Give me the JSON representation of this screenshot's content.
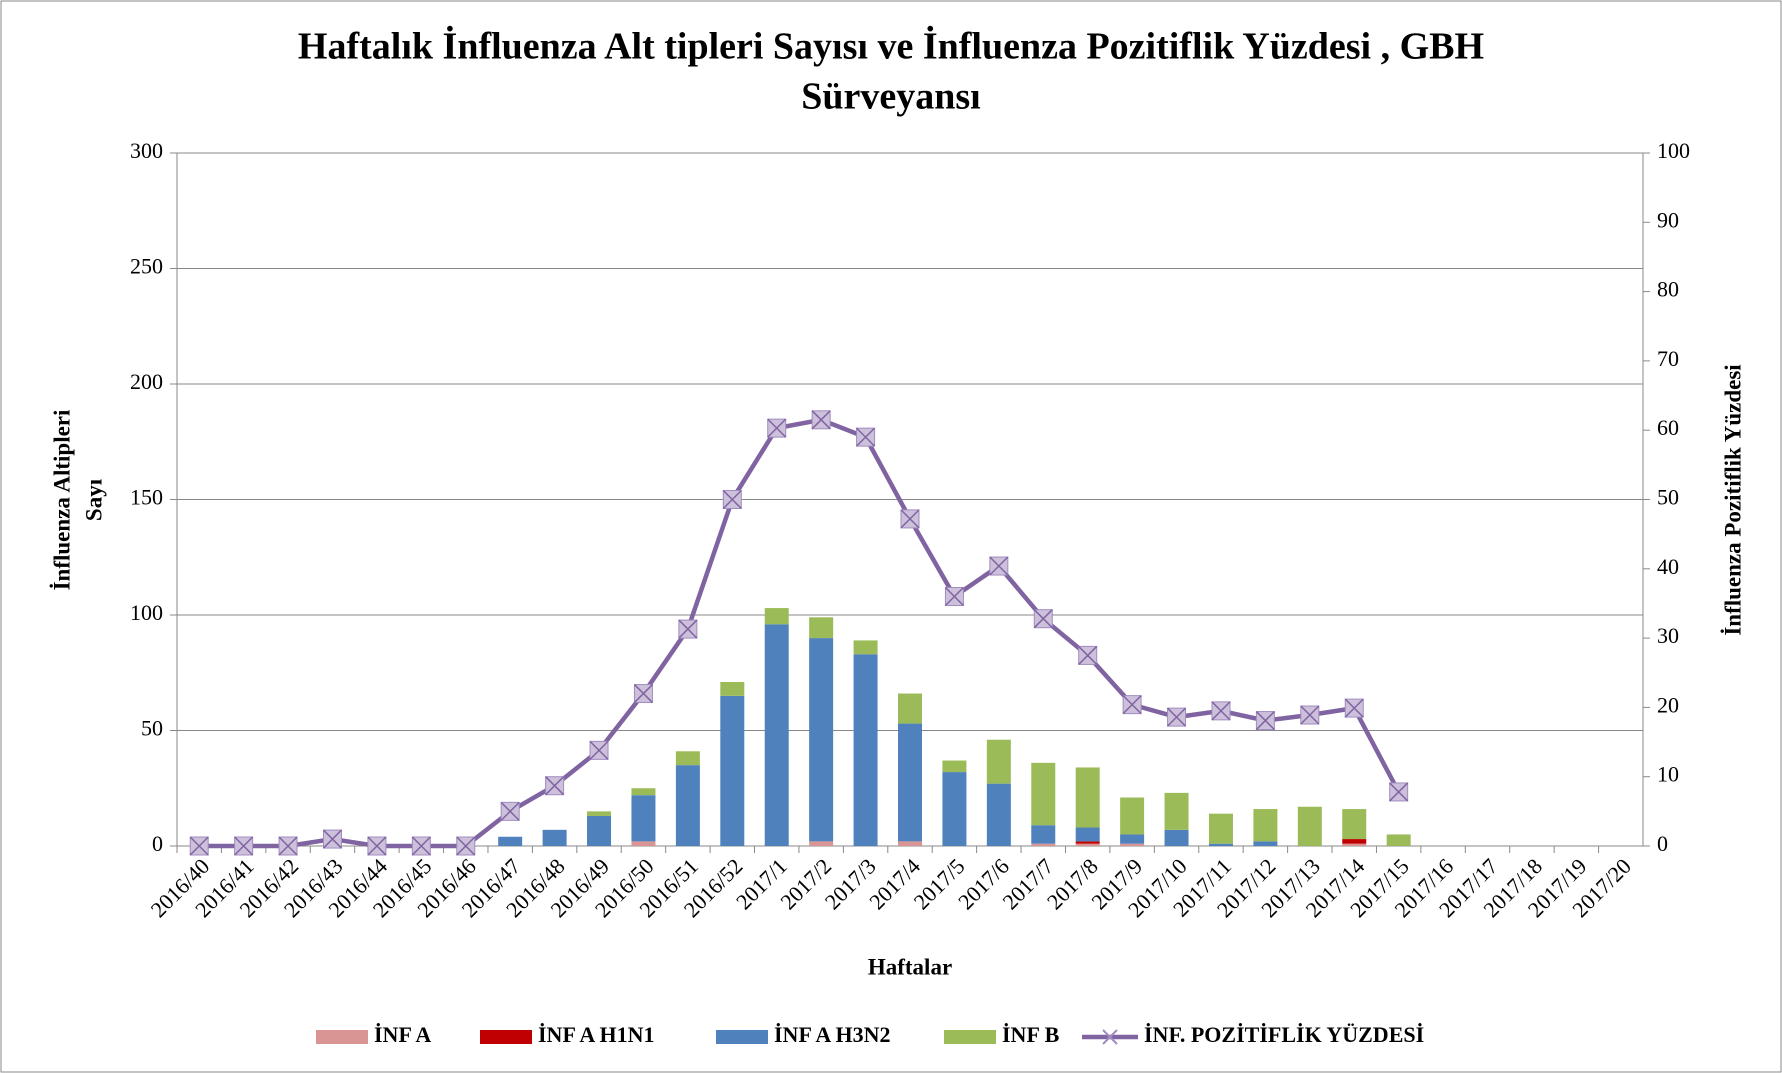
{
  "chart_data": {
    "type": "bar",
    "stacked": true,
    "title": [
      "Haftalık İnfluenza Alt tipleri Sayısı ve İnfluenza Pozitiflik Yüzdesi , GBH",
      "Sürveyansı"
    ],
    "y_label": [
      "İnfluenza Altipleri",
      "Sayı"
    ],
    "y2_label": "İnfluenza Pozitiflik Yüzdesi",
    "x_label": "Haftalar",
    "categories": [
      "2016/40",
      "2016/41",
      "2016/42",
      "2016/43",
      "2016/44",
      "2016/45",
      "2016/46",
      "2016/47",
      "2016/48",
      "2016/49",
      "2016/50",
      "2016/51",
      "2016/52",
      "2017/1",
      "2017/2",
      "2017/3",
      "2017/4",
      "2017/5",
      "2017/6",
      "2017/7",
      "2017/8",
      "2017/9",
      "2017/10",
      "2017/11",
      "2017/12",
      "2017/13",
      "2017/14",
      "2017/15",
      "2017/16",
      "2017/17",
      "2017/18",
      "2017/19",
      "2017/20"
    ],
    "series": [
      {
        "name": "İNF A",
        "color": "#d99594",
        "type": "bar",
        "values": [
          0,
          0,
          0,
          0,
          0,
          0,
          0,
          0,
          0,
          0,
          2,
          0,
          0,
          0,
          2,
          0,
          2,
          0,
          0,
          1,
          1,
          1,
          0,
          0,
          0,
          0,
          1,
          0,
          null,
          null,
          null,
          null,
          null
        ]
      },
      {
        "name": "İNF A H1N1",
        "color": "#c00000",
        "type": "bar",
        "values": [
          0,
          0,
          0,
          0,
          0,
          0,
          0,
          0,
          0,
          0,
          0,
          0,
          0,
          0,
          0,
          0,
          0,
          0,
          0,
          0,
          1,
          0,
          0,
          0,
          0,
          0,
          2,
          0,
          null,
          null,
          null,
          null,
          null
        ]
      },
      {
        "name": "İNF A H3N2",
        "color": "#4f81bd",
        "type": "bar",
        "values": [
          0,
          0,
          0,
          0,
          0,
          0,
          0,
          4,
          7,
          13,
          20,
          35,
          65,
          96,
          88,
          83,
          51,
          32,
          27,
          8,
          6,
          4,
          7,
          1,
          2,
          0,
          0,
          0,
          null,
          null,
          null,
          null,
          null
        ]
      },
      {
        "name": "İNF B",
        "color": "#9bbb59",
        "type": "bar",
        "values": [
          0,
          0,
          0,
          0,
          0,
          0,
          0,
          0,
          0,
          2,
          3,
          6,
          6,
          7,
          9,
          6,
          13,
          5,
          19,
          27,
          26,
          16,
          16,
          13,
          14,
          17,
          13,
          5,
          null,
          null,
          null,
          null,
          null
        ]
      },
      {
        "name": "İNF. POZİTİFLİK YÜZDESİ",
        "color": "#8064a2",
        "type": "line",
        "axis": "y2",
        "values": [
          0,
          0,
          0,
          1,
          0,
          0,
          0,
          5,
          8.7,
          13.8,
          22,
          31.3,
          50,
          60.3,
          61.5,
          59,
          47.2,
          36,
          40.4,
          32.8,
          27.5,
          20.4,
          18.6,
          19.5,
          18.1,
          18.9,
          19.9,
          7.8,
          null,
          null,
          null,
          null,
          null
        ]
      }
    ],
    "ylim": [
      0,
      300
    ],
    "yticks": [
      0,
      50,
      100,
      150,
      200,
      250,
      300
    ],
    "y2lim": [
      0,
      100
    ],
    "y2ticks": [
      0,
      10,
      20,
      30,
      40,
      50,
      60,
      70,
      80,
      90,
      100
    ],
    "grid": true,
    "legend": "bottom"
  }
}
